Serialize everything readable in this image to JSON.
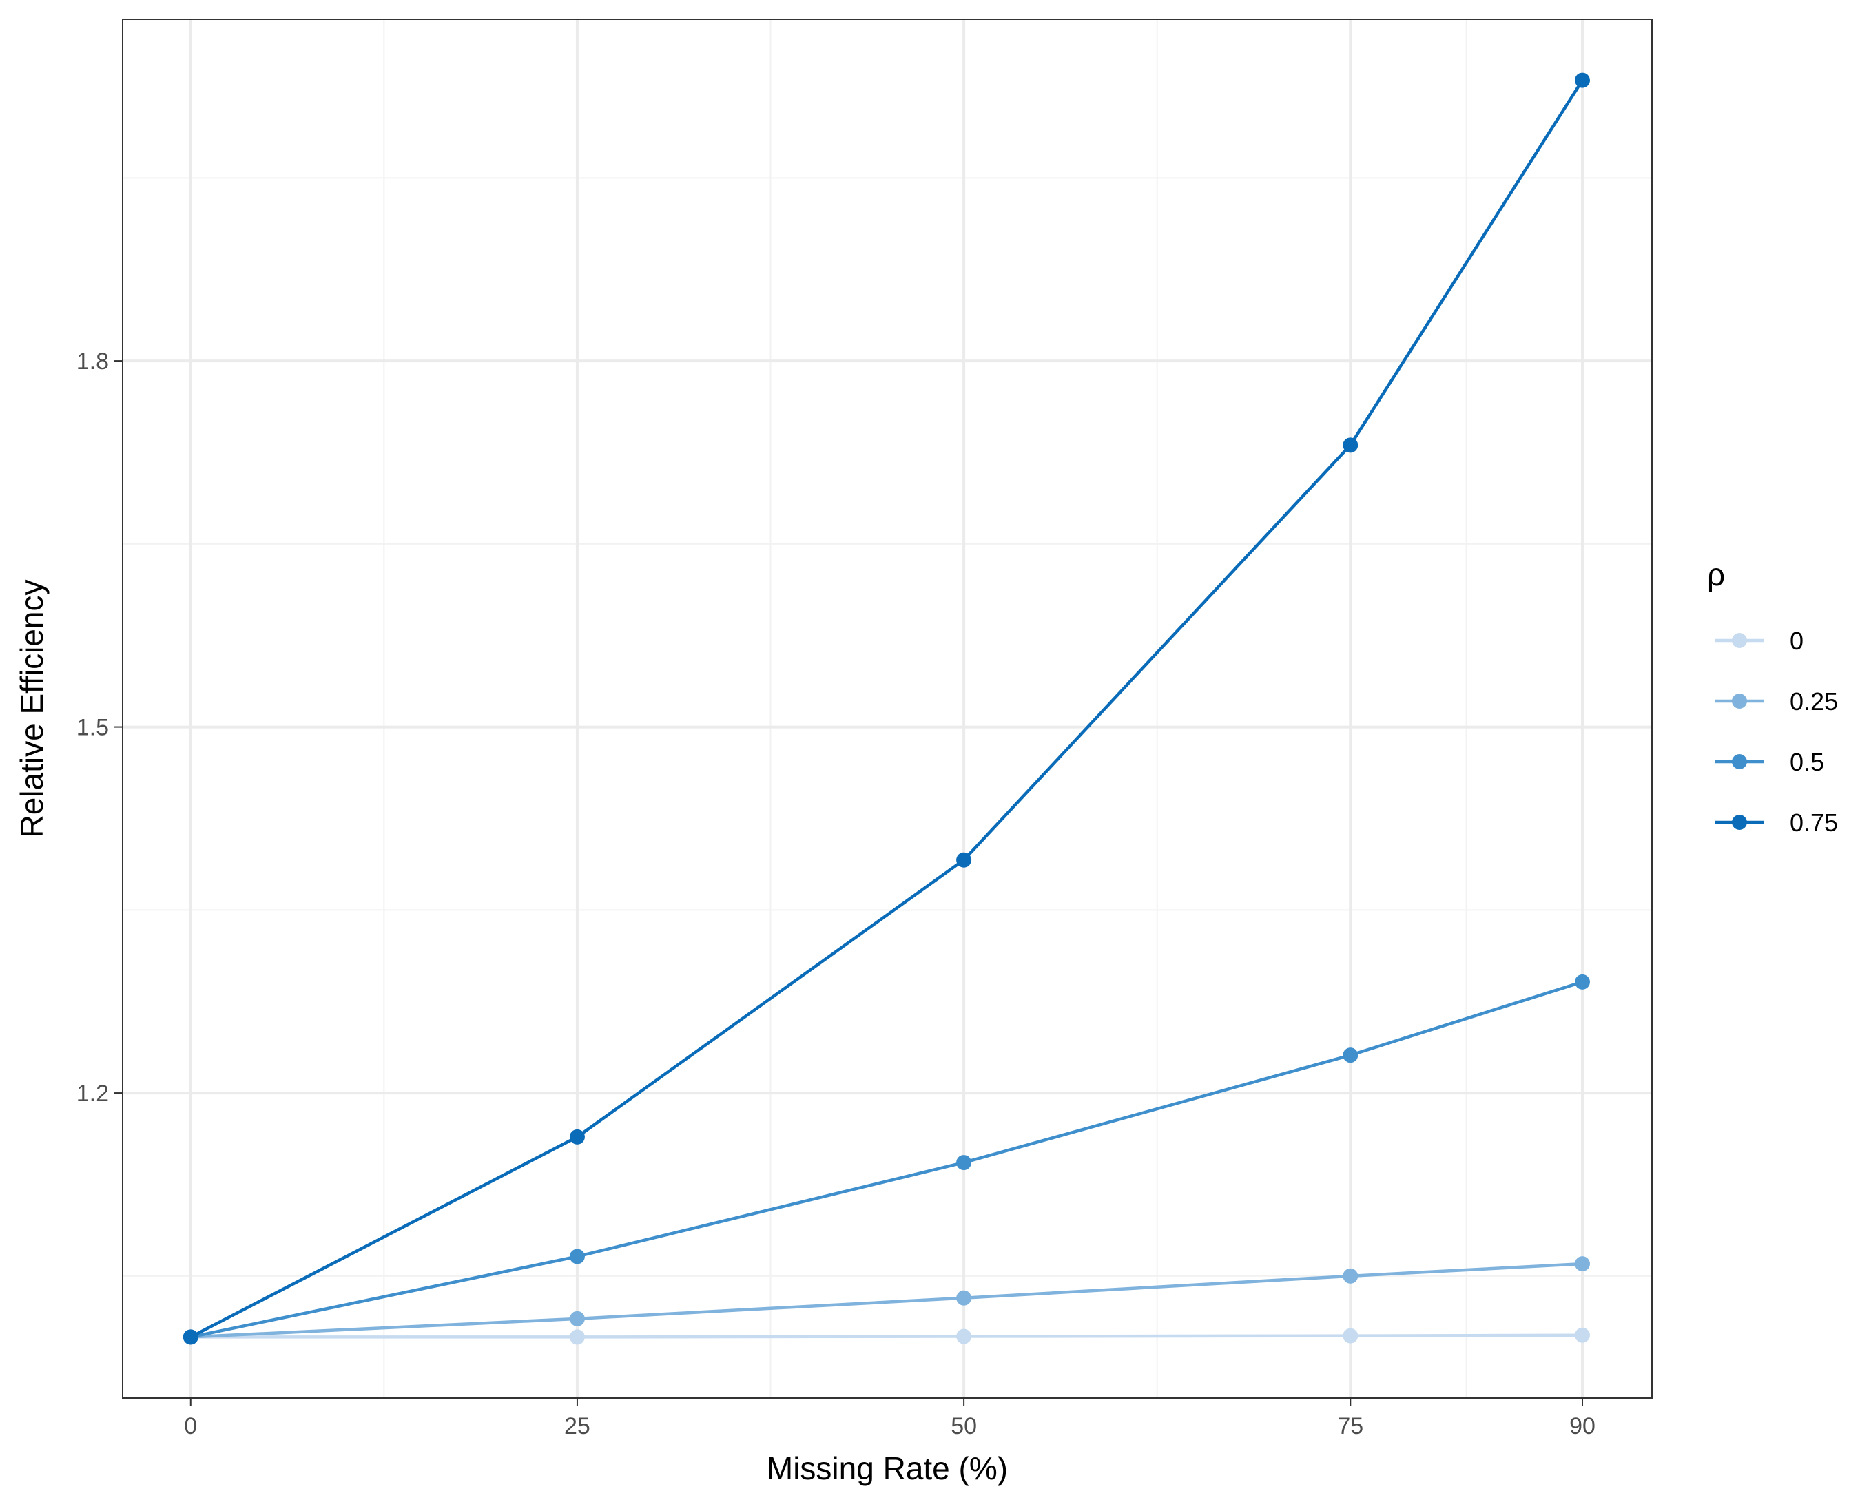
{
  "chart_data": {
    "type": "line",
    "title": "",
    "xlabel": "Missing Rate (%)",
    "ylabel": "Relative Efficiency",
    "x": [
      0,
      25,
      50,
      75,
      90
    ],
    "x_ticks": [
      0,
      25,
      50,
      75,
      90
    ],
    "x_tick_labels": [
      "0",
      "25",
      "50",
      "75",
      "90"
    ],
    "x_minor_grid": [
      12.5,
      37.5,
      62.5,
      82.5
    ],
    "xlim": [
      -4.4,
      94.5
    ],
    "y_ticks": [
      1.2,
      1.5,
      1.8
    ],
    "y_tick_labels": [
      "1.2",
      "1.5",
      "1.8"
    ],
    "y_minor_grid": [
      1.05,
      1.35,
      1.65,
      1.95
    ],
    "ylim": [
      0.95,
      2.08
    ],
    "grid": true,
    "legend": {
      "title": "ρ",
      "placement": "right"
    },
    "series": [
      {
        "name": "0",
        "color": "#c6dbef",
        "values": [
          1.0,
          1.0,
          1.0005,
          1.001,
          1.0015
        ]
      },
      {
        "name": "0.25",
        "color": "#7fb2dc",
        "values": [
          1.0,
          1.015,
          1.032,
          1.05,
          1.06
        ]
      },
      {
        "name": "0.5",
        "color": "#3f8fcd",
        "values": [
          1.0,
          1.066,
          1.143,
          1.231,
          1.291
        ]
      },
      {
        "name": "0.75",
        "color": "#0a6cb8",
        "values": [
          1.0,
          1.164,
          1.391,
          1.731,
          2.03
        ]
      }
    ]
  }
}
